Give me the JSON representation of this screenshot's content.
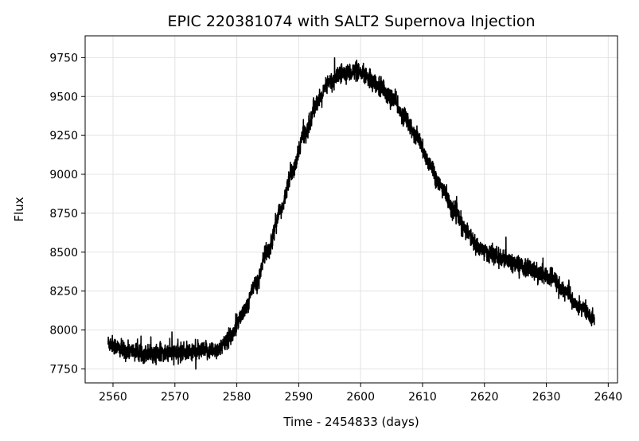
{
  "chart_data": {
    "type": "line",
    "title": "EPIC 220381074 with SALT2 Supernova Injection",
    "xlabel": "Time - 2454833 (days)",
    "ylabel": "Flux",
    "xlim": [
      2555.5,
      2641.5
    ],
    "ylim": [
      7660,
      9890
    ],
    "xticks": [
      2560,
      2570,
      2580,
      2590,
      2600,
      2610,
      2620,
      2630,
      2640
    ],
    "yticks": [
      7750,
      8000,
      8250,
      8500,
      8750,
      9000,
      9250,
      9500,
      9750
    ],
    "grid": true,
    "line_color": "#000000",
    "x_start": 2559.2,
    "x_end": 2637.8,
    "sampling_days": 0.0204,
    "noise_sigma": 28,
    "trend": {
      "t": [
        2559.2,
        2562,
        2566,
        2570,
        2574,
        2577,
        2579,
        2581,
        2583,
        2585,
        2587,
        2589,
        2591,
        2593,
        2595,
        2597,
        2599,
        2601,
        2603,
        2605,
        2607,
        2609,
        2611,
        2613,
        2615,
        2617,
        2619,
        2621,
        2623,
        2625,
        2627,
        2629,
        2631,
        2633,
        2635,
        2637.8
      ],
      "flux": [
        7915,
        7865,
        7850,
        7855,
        7862,
        7875,
        7960,
        8110,
        8290,
        8510,
        8760,
        9020,
        9270,
        9460,
        9590,
        9650,
        9660,
        9630,
        9570,
        9490,
        9380,
        9240,
        9080,
        8920,
        8770,
        8640,
        8530,
        8490,
        8455,
        8425,
        8395,
        8360,
        8330,
        8250,
        8160,
        8070
      ]
    }
  }
}
